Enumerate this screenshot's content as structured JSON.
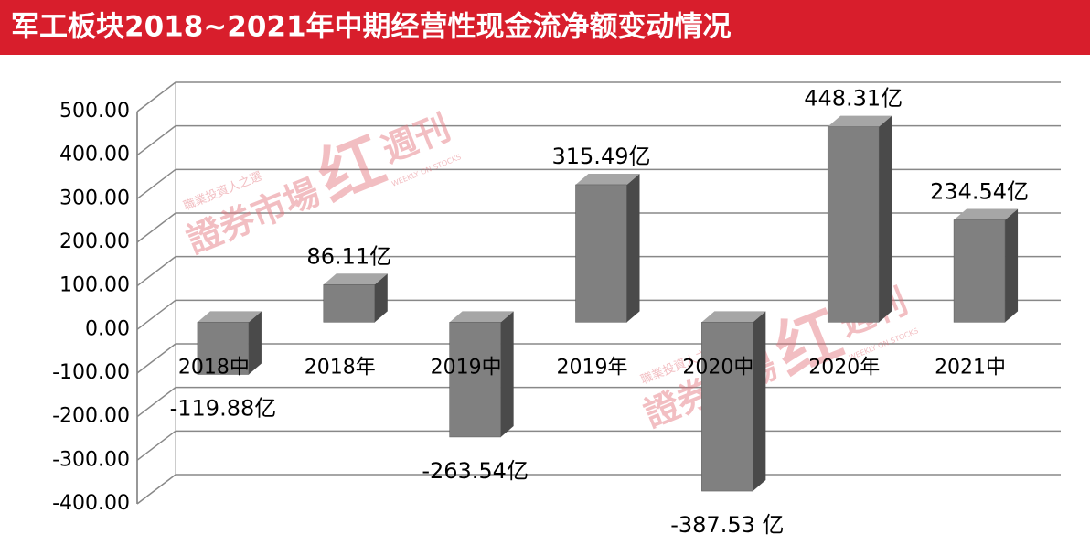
{
  "chart_data": {
    "type": "bar3d",
    "title": "军工板块2018~2021年中期经营性现金流净额变动情况",
    "categories": [
      "2018中",
      "2018年",
      "2019中",
      "2019年",
      "2020中",
      "2020年",
      "2021中"
    ],
    "values": [
      -119.88,
      86.11,
      -263.54,
      315.49,
      -387.53,
      448.31,
      234.54
    ],
    "value_labels": [
      "-119.88亿",
      "86.11亿",
      "-263.54亿",
      "315.49亿",
      "-387.53 亿",
      "448.31亿",
      "234.54亿"
    ],
    "color": "#808080",
    "ylim": [
      -400,
      500
    ],
    "yticks": [
      {
        "value": -400,
        "label": "-400.00"
      },
      {
        "value": -300,
        "label": "-300.00"
      },
      {
        "value": -200,
        "label": "-200.00"
      },
      {
        "value": -100,
        "label": "-100.00"
      },
      {
        "value": 0,
        "label": "0.00"
      },
      {
        "value": 100,
        "label": "100.00"
      },
      {
        "value": 200,
        "label": "200.00"
      },
      {
        "value": 300,
        "label": "300.00"
      },
      {
        "value": 400,
        "label": "400.00"
      },
      {
        "value": 500,
        "label": "500.00"
      }
    ],
    "grid": true,
    "watermark": [
      "職業投資人之選",
      "證券市場",
      "红",
      "週刊",
      "WEEKLY ON STOCKS"
    ]
  }
}
